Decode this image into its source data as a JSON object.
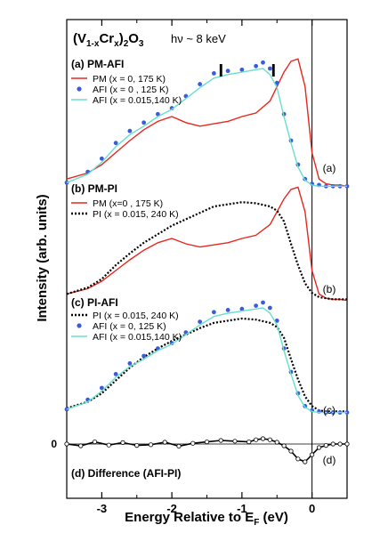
{
  "chart_data": {
    "type": "line",
    "title_main": "(V",
    "title_sub1": "1-x",
    "title_mid": "Cr",
    "title_sub2": "x",
    "title_close": ")",
    "title_sub3": "2",
    "title_end": "O",
    "title_sub4": "3",
    "title_energy": "hν ~ 8 keV",
    "xlabel_main": "Energy Relative to E",
    "xlabel_sub": "F",
    "xlabel_unit": " (eV)",
    "ylabel": "Intensity (arb. units)",
    "xlim": [
      -3.5,
      0.5
    ],
    "xticks": [
      {
        "value": -3,
        "label": "-3"
      },
      {
        "value": -2,
        "label": "-2"
      },
      {
        "value": -1,
        "label": "-1"
      },
      {
        "value": 0,
        "label": "0"
      }
    ],
    "zero_label": "0",
    "marker_positions": [
      -1.3,
      -0.55
    ],
    "marker_glyph": "I",
    "colors": {
      "pm": "#e8261f",
      "afi": "#3b5bdb",
      "afi0015": "#66e0cc",
      "pi": "#000000",
      "diff": "#000000"
    },
    "panels": [
      {
        "id": "a",
        "title": "(a) PM-AFI",
        "side_label": "(a)",
        "legend": [
          {
            "label": "PM     (x = 0, 175 K)",
            "style": "line",
            "color": "#e8261f"
          },
          {
            "label": "AFI    (x = 0 , 125 K)",
            "style": "dots",
            "color": "#3b5bdb"
          },
          {
            "label": "AFI    (x = 0.015,140 K)",
            "style": "line",
            "color": "#66e0cc"
          }
        ],
        "series": [
          {
            "name": "PM (x = 0, 175 K)",
            "style": "line",
            "color": "#e8261f",
            "x": [
              -3.5,
              -3.2,
              -3.0,
              -2.8,
              -2.6,
              -2.4,
              -2.2,
              -2.0,
              -1.8,
              -1.6,
              -1.4,
              -1.2,
              -1.0,
              -0.8,
              -0.6,
              -0.5,
              -0.4,
              -0.3,
              -0.2,
              -0.1,
              0.0,
              0.1,
              0.2,
              0.3,
              0.4,
              0.5
            ],
            "y": [
              0.08,
              0.13,
              0.2,
              0.3,
              0.4,
              0.49,
              0.56,
              0.6,
              0.55,
              0.52,
              0.54,
              0.56,
              0.6,
              0.63,
              0.73,
              0.85,
              0.97,
              1.06,
              1.08,
              0.85,
              0.3,
              0.08,
              0.04,
              0.03,
              0.03,
              0.02
            ]
          },
          {
            "name": "AFI (x = 0 , 125 K)",
            "style": "dots",
            "color": "#3b5bdb",
            "x": [
              -3.5,
              -3.2,
              -3.0,
              -2.8,
              -2.6,
              -2.4,
              -2.2,
              -2.0,
              -1.8,
              -1.6,
              -1.4,
              -1.2,
              -1.0,
              -0.8,
              -0.7,
              -0.6,
              -0.5,
              -0.4,
              -0.3,
              -0.2,
              -0.1,
              0.0,
              0.1,
              0.2,
              0.3,
              0.4,
              0.5
            ],
            "y": [
              0.05,
              0.14,
              0.25,
              0.38,
              0.48,
              0.55,
              0.62,
              0.67,
              0.77,
              0.87,
              0.96,
              0.98,
              0.99,
              1.02,
              1.05,
              1.0,
              0.88,
              0.62,
              0.4,
              0.2,
              0.08,
              0.04,
              0.03,
              0.02,
              0.02,
              0.02,
              0.02
            ]
          },
          {
            "name": "AFI (x = 0.015,140 K)",
            "style": "line",
            "color": "#66e0cc",
            "x": [
              -3.5,
              -3.2,
              -3.0,
              -2.8,
              -2.6,
              -2.4,
              -2.2,
              -2.0,
              -1.8,
              -1.6,
              -1.4,
              -1.2,
              -1.0,
              -0.8,
              -0.7,
              -0.6,
              -0.5,
              -0.4,
              -0.3,
              -0.2,
              -0.1,
              0.0,
              0.1,
              0.2,
              0.3,
              0.4,
              0.5
            ],
            "y": [
              0.05,
              0.12,
              0.22,
              0.35,
              0.45,
              0.52,
              0.6,
              0.66,
              0.75,
              0.84,
              0.92,
              0.95,
              0.97,
              0.99,
              1.0,
              0.95,
              0.84,
              0.6,
              0.38,
              0.18,
              0.07,
              0.03,
              0.02,
              0.02,
              0.02,
              0.02,
              0.02
            ]
          }
        ]
      },
      {
        "id": "b",
        "title": "(b) PM-PI",
        "side_label": "(b)",
        "legend": [
          {
            "label": "PM   (x=0 , 175 K)",
            "style": "line",
            "color": "#e8261f"
          },
          {
            "label": "PI     (x = 0.015, 240 K)",
            "style": "dotted",
            "color": "#000000"
          }
        ],
        "series": [
          {
            "name": "PM (x=0 , 175 K)",
            "style": "line",
            "color": "#e8261f",
            "x": [
              -3.5,
              -3.2,
              -3.0,
              -2.8,
              -2.6,
              -2.4,
              -2.2,
              -2.0,
              -1.8,
              -1.6,
              -1.4,
              -1.2,
              -1.0,
              -0.8,
              -0.6,
              -0.5,
              -0.4,
              -0.3,
              -0.2,
              -0.1,
              0.0,
              0.1,
              0.2,
              0.3,
              0.4,
              0.5
            ],
            "y": [
              0.08,
              0.13,
              0.2,
              0.3,
              0.4,
              0.49,
              0.56,
              0.6,
              0.55,
              0.52,
              0.54,
              0.56,
              0.6,
              0.63,
              0.73,
              0.85,
              0.97,
              1.06,
              1.08,
              0.85,
              0.3,
              0.08,
              0.04,
              0.03,
              0.03,
              0.02
            ]
          },
          {
            "name": "PI (x = 0.015, 240 K)",
            "style": "dotted",
            "color": "#000000",
            "x": [
              -3.5,
              -3.2,
              -3.0,
              -2.8,
              -2.6,
              -2.4,
              -2.2,
              -2.0,
              -1.8,
              -1.6,
              -1.4,
              -1.2,
              -1.0,
              -0.8,
              -0.6,
              -0.5,
              -0.4,
              -0.3,
              -0.2,
              -0.1,
              0.0,
              0.1,
              0.2,
              0.3,
              0.4,
              0.5
            ],
            "y": [
              0.08,
              0.14,
              0.22,
              0.35,
              0.46,
              0.56,
              0.64,
              0.72,
              0.78,
              0.84,
              0.9,
              0.92,
              0.94,
              0.93,
              0.9,
              0.86,
              0.76,
              0.55,
              0.35,
              0.18,
              0.09,
              0.05,
              0.04,
              0.03,
              0.03,
              0.03
            ]
          }
        ]
      },
      {
        "id": "c",
        "title": "(c) PI-AFI",
        "side_label": "(c)",
        "legend": [
          {
            "label": "PI     (x = 0.015, 240 K)",
            "style": "dotted",
            "color": "#000000"
          },
          {
            "label": "AFI   (x = 0, 125 K)",
            "style": "dots",
            "color": "#3b5bdb"
          },
          {
            "label": "AFI   (x = 0.015,140 K)",
            "style": "line",
            "color": "#66e0cc"
          }
        ],
        "series": [
          {
            "name": "PI (x = 0.015, 240 K)",
            "style": "dotted",
            "color": "#000000",
            "x": [
              -3.5,
              -3.2,
              -3.0,
              -2.8,
              -2.6,
              -2.4,
              -2.2,
              -2.0,
              -1.8,
              -1.6,
              -1.4,
              -1.2,
              -1.0,
              -0.8,
              -0.6,
              -0.5,
              -0.4,
              -0.3,
              -0.2,
              -0.1,
              0.0,
              0.1,
              0.2,
              0.3,
              0.4,
              0.5
            ],
            "y": [
              0.06,
              0.12,
              0.2,
              0.32,
              0.44,
              0.54,
              0.62,
              0.69,
              0.75,
              0.81,
              0.86,
              0.88,
              0.9,
              0.89,
              0.86,
              0.82,
              0.72,
              0.52,
              0.33,
              0.17,
              0.08,
              0.04,
              0.03,
              0.03,
              0.03,
              0.03
            ]
          },
          {
            "name": "AFI (x = 0, 125 K)",
            "style": "dots",
            "color": "#3b5bdb",
            "x": [
              -3.5,
              -3.2,
              -3.0,
              -2.8,
              -2.6,
              -2.4,
              -2.2,
              -2.0,
              -1.8,
              -1.6,
              -1.4,
              -1.2,
              -1.0,
              -0.8,
              -0.7,
              -0.6,
              -0.5,
              -0.4,
              -0.3,
              -0.2,
              -0.1,
              0.0,
              0.1,
              0.2,
              0.3,
              0.4,
              0.5
            ],
            "y": [
              0.05,
              0.14,
              0.25,
              0.38,
              0.48,
              0.55,
              0.62,
              0.67,
              0.77,
              0.87,
              0.96,
              0.98,
              0.99,
              1.02,
              1.05,
              1.0,
              0.88,
              0.62,
              0.4,
              0.2,
              0.08,
              0.04,
              0.03,
              0.02,
              0.02,
              0.02,
              0.02
            ]
          },
          {
            "name": "AFI (x = 0.015,140 K)",
            "style": "line",
            "color": "#66e0cc",
            "x": [
              -3.5,
              -3.2,
              -3.0,
              -2.8,
              -2.6,
              -2.4,
              -2.2,
              -2.0,
              -1.8,
              -1.6,
              -1.4,
              -1.2,
              -1.0,
              -0.8,
              -0.7,
              -0.6,
              -0.5,
              -0.4,
              -0.3,
              -0.2,
              -0.1,
              0.0,
              0.1,
              0.2,
              0.3,
              0.4,
              0.5
            ],
            "y": [
              0.05,
              0.12,
              0.22,
              0.35,
              0.45,
              0.52,
              0.6,
              0.66,
              0.75,
              0.84,
              0.92,
              0.95,
              0.97,
              0.99,
              1.0,
              0.95,
              0.84,
              0.6,
              0.38,
              0.18,
              0.07,
              0.03,
              0.02,
              0.02,
              0.02,
              0.02,
              0.02
            ]
          }
        ]
      },
      {
        "id": "d",
        "title": "(d) Difference (AFI-PI)",
        "side_label": "(d)",
        "legend": [],
        "series": [
          {
            "name": "AFI-PI",
            "style": "line+circles",
            "color": "#000000",
            "x": [
              -3.5,
              -3.3,
              -3.1,
              -2.9,
              -2.7,
              -2.5,
              -2.3,
              -2.1,
              -1.9,
              -1.7,
              -1.5,
              -1.3,
              -1.1,
              -0.9,
              -0.8,
              -0.7,
              -0.6,
              -0.5,
              -0.4,
              -0.3,
              -0.2,
              -0.1,
              0.0,
              0.1,
              0.2,
              0.3,
              0.4,
              0.5
            ],
            "y": [
              0.0,
              -0.05,
              0.06,
              -0.03,
              0.04,
              -0.04,
              -0.02,
              0.05,
              -0.06,
              0.02,
              0.06,
              0.1,
              0.08,
              0.06,
              0.12,
              0.15,
              0.12,
              0.05,
              -0.05,
              -0.2,
              -0.42,
              -0.5,
              -0.3,
              -0.1,
              -0.04,
              0.0,
              0.0,
              0.0
            ]
          }
        ]
      }
    ]
  }
}
